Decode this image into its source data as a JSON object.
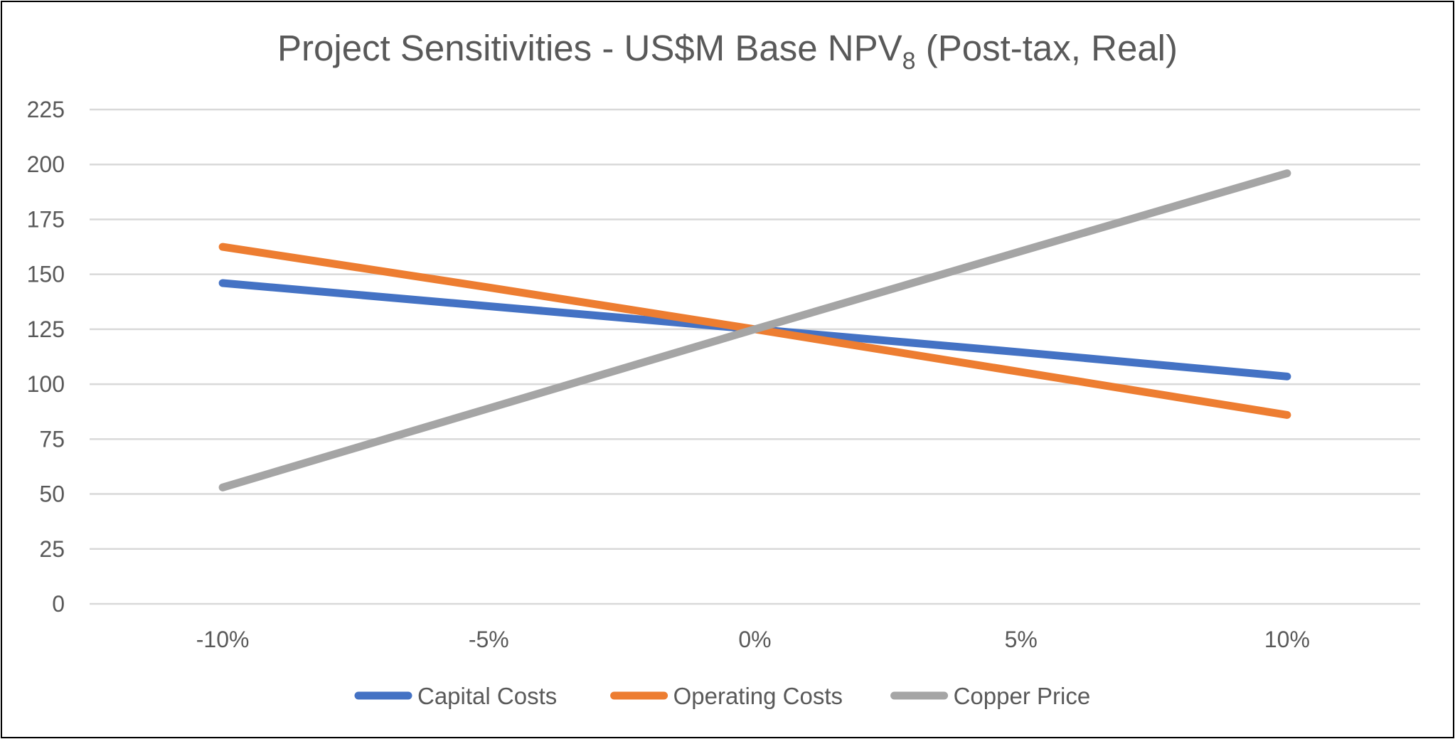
{
  "chart_data": {
    "type": "line",
    "title": "Project Sensitivities - US$M Base NPV",
    "title_subscript": "8",
    "title_suffix": "(Post-tax, Real)",
    "xlabel": "",
    "ylabel": "",
    "categories": [
      "-10%",
      "-5%",
      "0%",
      "5%",
      "10%"
    ],
    "ylim": [
      0,
      225
    ],
    "yticks": [
      0,
      25,
      50,
      75,
      100,
      125,
      150,
      175,
      200,
      225
    ],
    "grid": "horizontal",
    "legend_position": "bottom",
    "series": [
      {
        "name": "Capital Costs",
        "color": "#4472C4",
        "values": [
          146,
          135.5,
          125,
          114.5,
          103.5
        ]
      },
      {
        "name": "Operating Costs",
        "color": "#ED7D31",
        "values": [
          162.5,
          144,
          125,
          105.5,
          86
        ]
      },
      {
        "name": "Copper Price",
        "color": "#A5A5A5",
        "values": [
          53,
          89,
          125,
          160.5,
          196
        ]
      }
    ]
  }
}
